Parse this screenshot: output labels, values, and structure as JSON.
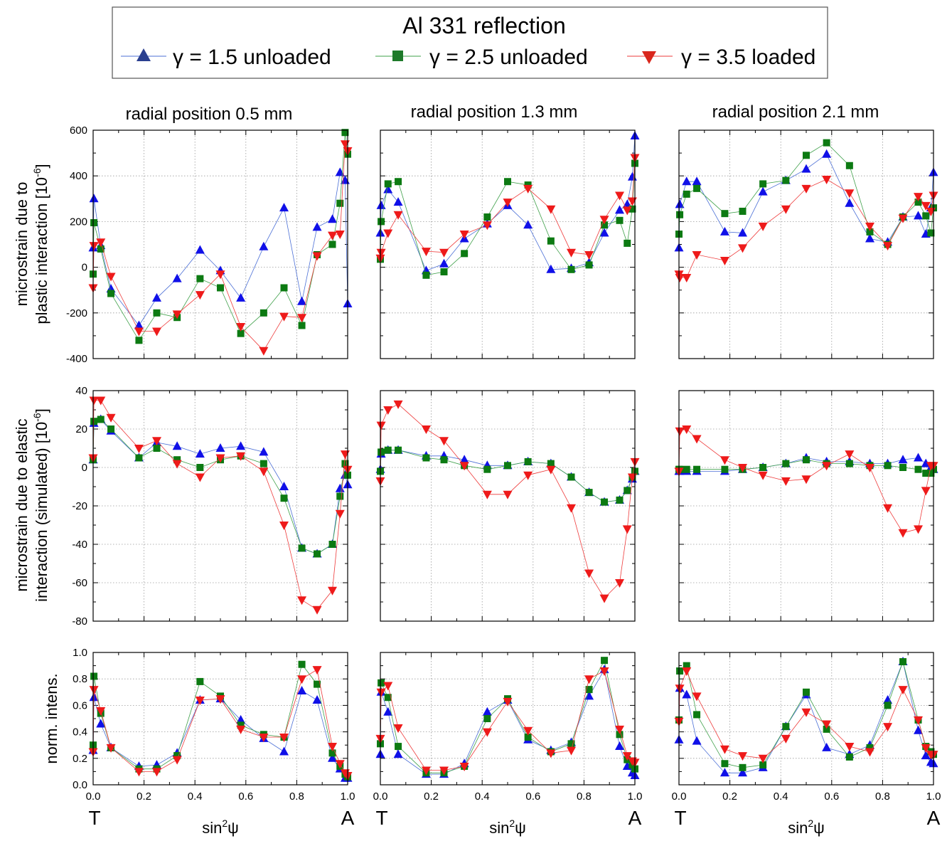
{
  "figure": {
    "legend": {
      "title": "Al 331 reflection",
      "entries": [
        {
          "label": "γ = 1.5 unloaded",
          "marker": "triangle-up",
          "color": "#1010e8",
          "legend_color": "#2a3f8f",
          "line_color": "#4b6fd6"
        },
        {
          "label": "γ = 2.5 unloaded",
          "marker": "square",
          "color": "#0c7a12",
          "legend_color": "#1e7a2a",
          "line_color": "#3fa04a"
        },
        {
          "label": "γ = 3.5 loaded",
          "marker": "triangle-down",
          "color": "#ee1a1a",
          "legend_color": "#d9261c",
          "line_color": "#ee3b3b"
        }
      ]
    },
    "column_titles": [
      "radial position 0.5 mm",
      "radial position 1.3 mm",
      "radial position 2.1 mm"
    ],
    "row_ylabels": [
      [
        "microstrain due to",
        "plastic interaction [10",
        "-6",
        "]"
      ],
      [
        "microstrain due to elastic",
        "interaction (simulated) [10",
        "-6",
        "]"
      ],
      [
        "norm. intens."
      ]
    ],
    "xlabel": {
      "base": "sin",
      "sup": "2",
      "var": "ψ"
    },
    "x_end_labels": {
      "left": "T",
      "right": "A"
    }
  },
  "chart_data": {
    "type": "scatter",
    "x": [
      0.0,
      0.003,
      0.03,
      0.07,
      0.18,
      0.25,
      0.33,
      0.42,
      0.5,
      0.58,
      0.67,
      0.75,
      0.82,
      0.88,
      0.94,
      0.97,
      0.99,
      1.0
    ],
    "xlim": [
      0,
      1
    ],
    "xticks": [
      "0.0",
      "0.2",
      "0.4",
      "0.6",
      "0.8",
      "1.0"
    ],
    "rows": [
      {
        "ylim": [
          -400,
          600
        ],
        "yticks": [
          "-400",
          "-200",
          "0",
          "200",
          "400",
          "600"
        ],
        "panels": [
          {
            "title": "radial position 0.5 mm",
            "series": [
              {
                "name": "γ = 1.5 unloaded",
                "values": [
                  85,
                  300,
                  95,
                  -95,
                  -255,
                  -135,
                  -50,
                  75,
                  -15,
                  -135,
                  90,
                  260,
                  -150,
                  175,
                  210,
                  415,
                  380,
                  -160
                ]
              },
              {
                "name": "γ = 2.5 unloaded",
                "values": [
                  -30,
                  195,
                  80,
                  -115,
                  -320,
                  -200,
                  -220,
                  -50,
                  -90,
                  -290,
                  -200,
                  -90,
                  -255,
                  55,
                  100,
                  280,
                  590,
                  495
                ]
              },
              {
                "name": "γ = 3.5 loaded",
                "values": [
                  -90,
                  95,
                  110,
                  -40,
                  -280,
                  -280,
                  -205,
                  -120,
                  -30,
                  -260,
                  -365,
                  -215,
                  -220,
                  50,
                  140,
                  145,
                  540,
                  510
                ]
              }
            ]
          },
          {
            "title": "radial position 1.3 mm",
            "series": [
              {
                "name": "γ = 1.5 unloaded",
                "values": [
                  150,
                  270,
                  340,
                  285,
                  -15,
                  15,
                  125,
                  190,
                  270,
                  185,
                  -10,
                  -5,
                  20,
                  150,
                  250,
                  275,
                  395,
                  575
                ]
              },
              {
                "name": "γ = 2.5 unloaded",
                "values": [
                  35,
                  200,
                  365,
                  375,
                  -35,
                  -20,
                  60,
                  220,
                  375,
                  360,
                  115,
                  -10,
                  10,
                  185,
                  205,
                  105,
                  255,
                  455
                ]
              },
              {
                "name": "γ = 3.5 loaded",
                "values": [
                  40,
                  65,
                  150,
                  230,
                  70,
                  65,
                  145,
                  185,
                  285,
                  345,
                  255,
                  65,
                  55,
                  210,
                  315,
                  250,
                  290,
                  480
                ]
              }
            ]
          },
          {
            "title": "radial position 2.1 mm",
            "series": [
              {
                "name": "γ = 1.5 unloaded",
                "values": [
                  85,
                  275,
                  375,
                  375,
                  155,
                  150,
                  330,
                  380,
                  430,
                  495,
                  280,
                  125,
                  110,
                  220,
                  225,
                  145,
                  260,
                  415
                ]
              },
              {
                "name": "γ = 2.5 unloaded",
                "values": [
                  145,
                  230,
                  320,
                  345,
                  235,
                  245,
                  365,
                  380,
                  490,
                  545,
                  445,
                  155,
                  100,
                  220,
                  285,
                  225,
                  150,
                  260
                ]
              },
              {
                "name": "γ = 3.5 loaded",
                "values": [
                  -30,
                  -45,
                  -45,
                  55,
                  30,
                  85,
                  180,
                  255,
                  345,
                  385,
                  325,
                  180,
                  95,
                  215,
                  310,
                  270,
                  245,
                  315
                ]
              }
            ]
          }
        ]
      },
      {
        "ylim": [
          -80,
          40
        ],
        "yticks": [
          "-80",
          "-60",
          "-40",
          "-20",
          "0",
          "20",
          "40"
        ],
        "panels": [
          {
            "title": "radial position 0.5 mm",
            "series": [
              {
                "name": "γ = 1.5 unloaded",
                "values": [
                  4,
                  23,
                  25,
                  19,
                  5,
                  13,
                  11,
                  7,
                  10,
                  11,
                  8,
                  -10,
                  -42,
                  -45,
                  -40,
                  -11,
                  -4,
                  -9
                ]
              },
              {
                "name": "γ = 2.5 unloaded",
                "values": [
                  4,
                  24,
                  25,
                  20,
                  5,
                  10,
                  4,
                  0,
                  4,
                  6,
                  2,
                  -16,
                  -42,
                  -45,
                  -40,
                  -15,
                  2,
                  -4
                ]
              },
              {
                "name": "γ = 3.5 loaded",
                "values": [
                  5,
                  35,
                  35,
                  26,
                  10,
                  14,
                  2,
                  -5,
                  5,
                  6,
                  -2,
                  -30,
                  -69,
                  -74,
                  -64,
                  -24,
                  7,
                  -1
                ]
              }
            ]
          },
          {
            "title": "radial position 1.3 mm",
            "series": [
              {
                "name": "γ = 1.5 unloaded",
                "values": [
                  -1,
                  7,
                  9,
                  9,
                  6,
                  6,
                  4,
                  1,
                  1,
                  3,
                  2,
                  -5,
                  -13,
                  -18,
                  -17,
                  -12,
                  -6,
                  -2
                ]
              },
              {
                "name": "γ = 2.5 unloaded",
                "values": [
                  -2,
                  8,
                  9,
                  9,
                  5,
                  4,
                  1,
                  -1,
                  1,
                  3,
                  2,
                  -5,
                  -13,
                  -18,
                  -17,
                  -12,
                  -5,
                  -2
                ]
              },
              {
                "name": "γ = 3.5 loaded",
                "values": [
                  -7,
                  22,
                  30,
                  33,
                  20,
                  14,
                  1,
                  -14,
                  -14,
                  -4,
                  -1,
                  -21,
                  -55,
                  -68,
                  -60,
                  -32,
                  -5,
                  3
                ]
              }
            ]
          },
          {
            "title": "radial position 2.1 mm",
            "series": [
              {
                "name": "γ = 1.5 unloaded",
                "values": [
                  -2,
                  -2,
                  -2,
                  -2,
                  -2,
                  -1,
                  0,
                  2,
                  5,
                  3,
                  3,
                  2,
                  2,
                  4,
                  5,
                  2,
                  0,
                  -1
                ]
              },
              {
                "name": "γ = 2.5 unloaded",
                "values": [
                  -1,
                  -1,
                  -1,
                  -1,
                  -1,
                  -1,
                  0,
                  2,
                  4,
                  2,
                  2,
                  1,
                  1,
                  0,
                  -1,
                  -3,
                  -3,
                  -1
                ]
              },
              {
                "name": "γ = 3.5 loaded",
                "values": [
                  -2,
                  19,
                  20,
                  15,
                  4,
                  0,
                  -4,
                  -7,
                  -6,
                  1,
                  7,
                  0,
                  -21,
                  -34,
                  -32,
                  -12,
                  1,
                  1
                ]
              }
            ]
          }
        ]
      },
      {
        "ylim": [
          0,
          1
        ],
        "yticks": [
          "0.0",
          "0.2",
          "0.4",
          "0.6",
          "0.8",
          "1.0"
        ],
        "panels": [
          {
            "title": "radial position 0.5 mm",
            "series": [
              {
                "name": "γ = 1.5 unloaded",
                "values": [
                  0.26,
                  0.66,
                  0.46,
                  0.28,
                  0.14,
                  0.15,
                  0.24,
                  0.64,
                  0.65,
                  0.49,
                  0.35,
                  0.25,
                  0.71,
                  0.64,
                  0.2,
                  0.12,
                  0.05,
                  0.05
                ]
              },
              {
                "name": "γ = 2.5 unloaded",
                "values": [
                  0.3,
                  0.82,
                  0.54,
                  0.28,
                  0.12,
                  0.12,
                  0.22,
                  0.78,
                  0.67,
                  0.45,
                  0.38,
                  0.36,
                  0.91,
                  0.76,
                  0.24,
                  0.14,
                  0.08,
                  0.06
                ]
              },
              {
                "name": "γ = 3.5 loaded",
                "values": [
                  0.25,
                  0.72,
                  0.56,
                  0.28,
                  0.1,
                  0.1,
                  0.19,
                  0.64,
                  0.65,
                  0.42,
                  0.36,
                  0.36,
                  0.8,
                  0.87,
                  0.29,
                  0.16,
                  0.09,
                  0.07
                ]
              }
            ]
          },
          {
            "title": "radial position 1.3 mm",
            "series": [
              {
                "name": "γ = 1.5 unloaded",
                "values": [
                  0.23,
                  0.7,
                  0.55,
                  0.23,
                  0.08,
                  0.08,
                  0.16,
                  0.55,
                  0.64,
                  0.34,
                  0.26,
                  0.32,
                  0.67,
                  0.87,
                  0.29,
                  0.14,
                  0.09,
                  0.07
                ]
              },
              {
                "name": "γ = 2.5 unloaded",
                "values": [
                  0.31,
                  0.77,
                  0.66,
                  0.29,
                  0.09,
                  0.09,
                  0.14,
                  0.5,
                  0.65,
                  0.36,
                  0.25,
                  0.31,
                  0.72,
                  0.94,
                  0.38,
                  0.19,
                  0.15,
                  0.12
                ]
              },
              {
                "name": "γ = 3.5 loaded",
                "values": [
                  0.35,
                  0.7,
                  0.75,
                  0.43,
                  0.11,
                  0.11,
                  0.14,
                  0.4,
                  0.63,
                  0.41,
                  0.24,
                  0.26,
                  0.8,
                  0.86,
                  0.42,
                  0.22,
                  0.18,
                  0.17
                ]
              }
            ]
          },
          {
            "title": "radial position 2.1 mm",
            "series": [
              {
                "name": "γ = 1.5 unloaded",
                "values": [
                  0.34,
                  0.73,
                  0.68,
                  0.33,
                  0.09,
                  0.09,
                  0.13,
                  0.44,
                  0.68,
                  0.28,
                  0.23,
                  0.3,
                  0.64,
                  0.93,
                  0.41,
                  0.22,
                  0.17,
                  0.16
                ]
              },
              {
                "name": "γ = 2.5 unloaded",
                "values": [
                  0.49,
                  0.86,
                  0.9,
                  0.53,
                  0.16,
                  0.13,
                  0.15,
                  0.44,
                  0.7,
                  0.42,
                  0.21,
                  0.28,
                  0.6,
                  0.93,
                  0.49,
                  0.29,
                  0.25,
                  0.23
                ]
              },
              {
                "name": "γ = 3.5 loaded",
                "values": [
                  0.48,
                  0.73,
                  0.86,
                  0.67,
                  0.27,
                  0.22,
                  0.2,
                  0.35,
                  0.55,
                  0.46,
                  0.29,
                  0.25,
                  0.44,
                  0.72,
                  0.49,
                  0.28,
                  0.23,
                  0.23
                ]
              }
            ]
          }
        ]
      }
    ]
  }
}
